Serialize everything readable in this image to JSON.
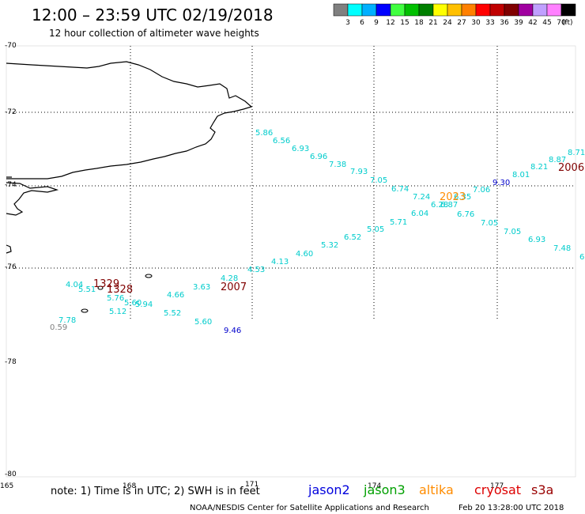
{
  "header": {
    "title": "12:00 – 23:59 UTC 02/19/2018",
    "subtitle": "12 hour collection of altimeter wave heights"
  },
  "color_scale": {
    "colors": [
      "#808080",
      "#00ffff",
      "#00b0ff",
      "#0000ff",
      "#40ff40",
      "#00c000",
      "#008000",
      "#ffff00",
      "#ffc000",
      "#ff8000",
      "#ff0000",
      "#c00000",
      "#800000",
      "#a000a0",
      "#c0a0ff",
      "#ff80ff",
      "#000000"
    ],
    "labels": [
      "3",
      "6",
      "9",
      "12",
      "15",
      "18",
      "21",
      "24",
      "27",
      "30",
      "33",
      "36",
      "39",
      "42",
      "45",
      "70"
    ],
    "unit": "(ft)"
  },
  "map": {
    "lat_labels": [
      "-70",
      "-72",
      "-74",
      "-76",
      "-78",
      "-80"
    ],
    "lon_labels": [
      "165",
      "168",
      "171",
      "174",
      "177"
    ]
  },
  "points": [
    {
      "v": "5.86",
      "c": "#00cccc"
    },
    {
      "v": "6.56",
      "c": "#00cccc"
    },
    {
      "v": "6.93",
      "c": "#00cccc"
    },
    {
      "v": "6.96",
      "c": "#00cccc"
    },
    {
      "v": "7.38",
      "c": "#00cccc"
    },
    {
      "v": "7.93",
      "c": "#00cccc"
    },
    {
      "v": "7.05",
      "c": "#00cccc"
    },
    {
      "v": "6.74",
      "c": "#00cccc"
    },
    {
      "v": "7.24",
      "c": "#00cccc"
    },
    {
      "v": "6.28",
      "c": "#00cccc"
    },
    {
      "v": "6.87",
      "c": "#00cccc"
    },
    {
      "v": "6.35",
      "c": "#00cccc"
    },
    {
      "v": "7.06",
      "c": "#00cccc"
    },
    {
      "v": "9.30",
      "c": "#0000cc"
    },
    {
      "v": "8.01",
      "c": "#00cccc"
    },
    {
      "v": "8.21",
      "c": "#00cccc"
    },
    {
      "v": "8.87",
      "c": "#00cccc"
    },
    {
      "v": "8.71",
      "c": "#00cccc"
    },
    {
      "v": "6.04",
      "c": "#00cccc"
    },
    {
      "v": "6.76",
      "c": "#00cccc"
    },
    {
      "v": "7.05",
      "c": "#00cccc"
    },
    {
      "v": "5.71",
      "c": "#00cccc"
    },
    {
      "v": "5.05",
      "c": "#00cccc"
    },
    {
      "v": "6.52",
      "c": "#00cccc"
    },
    {
      "v": "5.32",
      "c": "#00cccc"
    },
    {
      "v": "4.60",
      "c": "#00cccc"
    },
    {
      "v": "4.13",
      "c": "#00cccc"
    },
    {
      "v": "4.53",
      "c": "#00cccc"
    },
    {
      "v": "4.28",
      "c": "#00cccc"
    },
    {
      "v": "7.05",
      "c": "#00cccc"
    },
    {
      "v": "6.93",
      "c": "#00cccc"
    },
    {
      "v": "7.48",
      "c": "#00cccc"
    },
    {
      "v": "6",
      "c": "#00cccc"
    },
    {
      "v": "3.63",
      "c": "#00cccc"
    },
    {
      "v": "4.66",
      "c": "#00cccc"
    },
    {
      "v": "4.04",
      "c": "#00cccc"
    },
    {
      "v": "5.51",
      "c": "#00cccc"
    },
    {
      "v": "5.76",
      "c": "#00cccc"
    },
    {
      "v": "5.60",
      "c": "#00cccc"
    },
    {
      "v": "5.94",
      "c": "#00cccc"
    },
    {
      "v": "5.12",
      "c": "#00cccc"
    },
    {
      "v": "5.52",
      "c": "#00cccc"
    },
    {
      "v": "5.60",
      "c": "#00cccc"
    },
    {
      "v": "7.78",
      "c": "#00cccc"
    },
    {
      "v": "9.46",
      "c": "#0000cc"
    },
    {
      "v": "0.59",
      "c": "#808080"
    }
  ],
  "time_labels": [
    {
      "v": "2023",
      "c": "#ff8c00"
    },
    {
      "v": "2006",
      "c": "#800000"
    },
    {
      "v": "2007",
      "c": "#800000"
    },
    {
      "v": "1329",
      "c": "#800000"
    },
    {
      "v": "1328",
      "c": "#800000"
    }
  ],
  "footer": {
    "note": "note:  1) Time is in UTC;  2) SWH is in feet",
    "credit": "NOAA/NESDIS Center for Satellite Applications and Research",
    "timestamp": "Feb 20 13:28:00 UTC 2018",
    "satellites": [
      {
        "name": "jason2",
        "color": "#0000dd"
      },
      {
        "name": "jason3",
        "color": "#00a000"
      },
      {
        "name": "altika",
        "color": "#ff8c00"
      },
      {
        "name": "cryosat",
        "color": "#dd0000"
      },
      {
        "name": "s3a",
        "color": "#990000"
      }
    ]
  }
}
